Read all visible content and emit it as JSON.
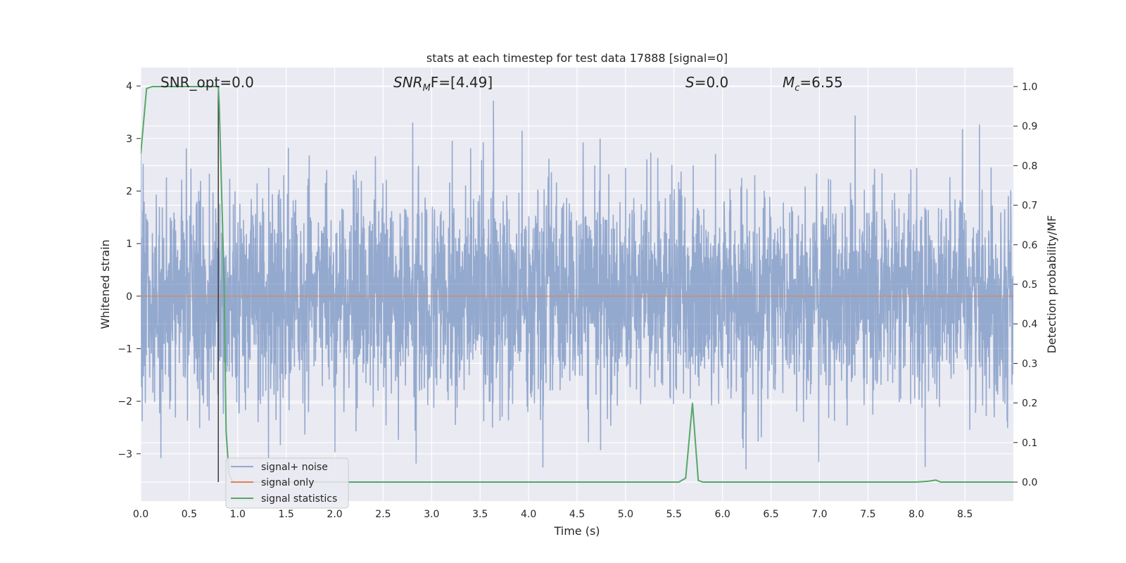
{
  "chart_data": {
    "type": "line",
    "title": "stats at each timestep for test data 17888 [signal=0]",
    "xlabel": "Time (s)",
    "ylabel": "Whitened strain",
    "ylabel_right": "Detection probability/MF",
    "xlim": [
      0.0,
      9.0
    ],
    "ylim": [
      -3.9,
      4.35
    ],
    "ylim_right": [
      -0.048,
      1.048
    ],
    "xticks": [
      "0.0",
      "0.5",
      "1.0",
      "1.5",
      "2.0",
      "2.5",
      "3.0",
      "3.5",
      "4.0",
      "4.5",
      "5.0",
      "5.5",
      "6.0",
      "6.5",
      "7.0",
      "7.5",
      "8.0",
      "8.5"
    ],
    "yticks": [
      "4",
      "3",
      "2",
      "1",
      "0",
      "−1",
      "−2",
      "−3"
    ],
    "yticks_right": [
      "1.0",
      "0.9",
      "0.8",
      "0.7",
      "0.6",
      "0.5",
      "0.4",
      "0.3",
      "0.2",
      "0.1",
      "0.0"
    ],
    "grid": true,
    "legend_position": "lower-left",
    "annotations": [
      {
        "text": "SNR_opt=0.0",
        "x": 0.2
      },
      {
        "text": "SNR_MF=[4.49]",
        "x": 2.6
      },
      {
        "text": "S=0.0",
        "x": 5.6
      },
      {
        "text": "M_c=6.55",
        "x": 6.6
      }
    ],
    "annotation_display": {
      "a0": "SNR_opt=0.0",
      "a1_main": "SNR",
      "a1_sub": "M",
      "a1_rest": "F=[4.49]",
      "a2_main": "S",
      "a2_rest": "=0.0",
      "a3_main": "M",
      "a3_sub": "c",
      "a3_rest": "=6.55"
    },
    "vline_x": 0.8,
    "series": [
      {
        "name": "signal+ noise",
        "color": "#4c72b0",
        "kind": "noise",
        "amplitude_typical": [
          -1.3,
          1.3
        ],
        "amplitude_extremes": [
          -3.3,
          4.0
        ]
      },
      {
        "name": "signal only",
        "color": "#dd8452",
        "x": [
          0.0,
          9.0
        ],
        "y": [
          0.0,
          0.0
        ]
      },
      {
        "name": "signal statistics",
        "color": "#55a868",
        "axis": "right",
        "x": [
          0.0,
          0.06,
          0.12,
          0.2,
          0.4,
          0.6,
          0.8,
          0.81,
          0.86,
          0.88,
          0.91,
          0.95,
          1.0,
          1.5,
          2.0,
          3.0,
          4.0,
          5.0,
          5.5,
          5.55,
          5.62,
          5.69,
          5.75,
          5.8,
          6.0,
          7.0,
          8.0,
          8.12,
          8.2,
          8.25,
          8.5,
          9.0
        ],
        "y": [
          0.83,
          0.995,
          1.0,
          1.0,
          1.0,
          1.0,
          1.0,
          0.95,
          0.5,
          0.13,
          0.02,
          0.0,
          0.0,
          0.0,
          0.0,
          0.0,
          0.0,
          0.0,
          0.0,
          0.0,
          0.01,
          0.2,
          0.004,
          0.0,
          0.0,
          0.0,
          0.0,
          0.002,
          0.005,
          0.0,
          0.0,
          0.0
        ]
      }
    ]
  }
}
